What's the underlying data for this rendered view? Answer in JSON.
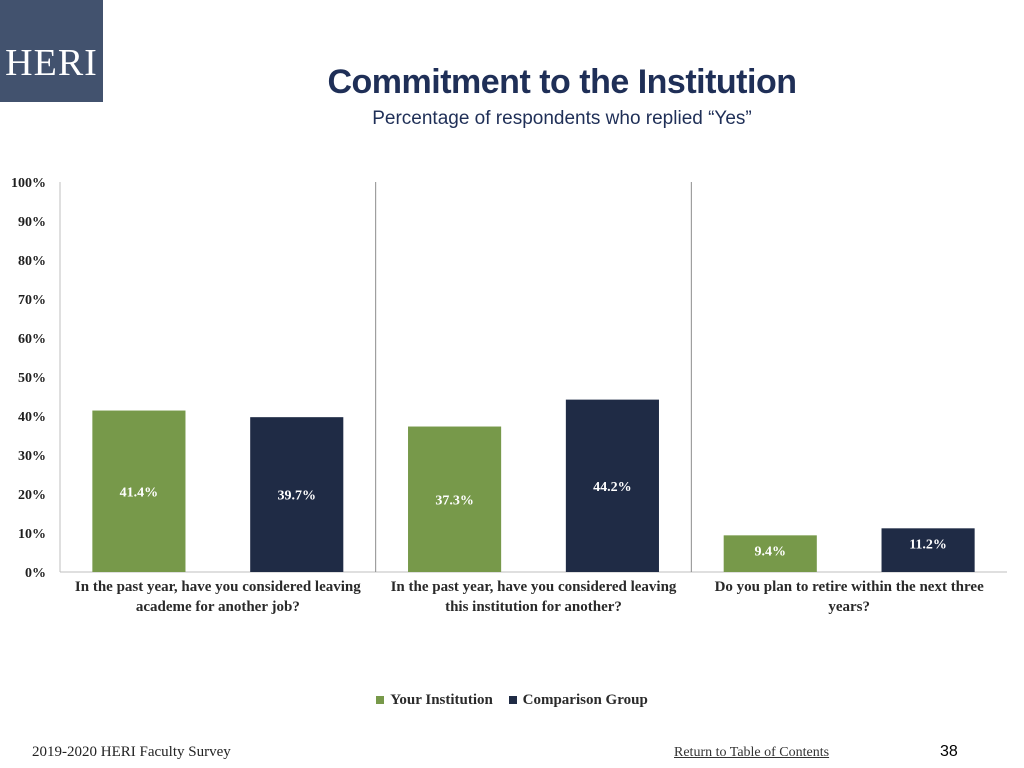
{
  "logo": {
    "text": "HERI"
  },
  "header": {
    "title": "Commitment to the Institution",
    "subtitle": "Percentage of respondents who replied “Yes”"
  },
  "colors": {
    "your_institution": "#77994a",
    "comparison_group": "#1f2b45",
    "header_bg": "#42526e",
    "title": "#1f2f57"
  },
  "chart_data": {
    "type": "bar",
    "title": "Commitment to the Institution",
    "subtitle": "Percentage of respondents who replied “Yes”",
    "categories": [
      "In the past year, have you considered leaving academe for another job?",
      "In the past year, have you considered leaving this institution for another?",
      "Do you plan to retire within the next three years?"
    ],
    "series": [
      {
        "name": "Your Institution",
        "values": [
          41.4,
          37.3,
          9.4
        ],
        "labels": [
          "41.4%",
          "37.3%",
          "9.4%"
        ]
      },
      {
        "name": "Comparison Group",
        "values": [
          39.7,
          44.2,
          11.2
        ],
        "labels": [
          "39.7%",
          "44.2%",
          "11.2%"
        ]
      }
    ],
    "ylim": [
      0,
      100
    ],
    "yticks": [
      "0%",
      "10%",
      "20%",
      "30%",
      "40%",
      "50%",
      "60%",
      "70%",
      "80%",
      "90%",
      "100%"
    ],
    "grid": false,
    "legend_position": "bottom"
  },
  "legend": {
    "items": [
      "Your Institution",
      "Comparison Group"
    ]
  },
  "footer": {
    "survey": "2019-2020 HERI Faculty Survey",
    "link": "Return to Table of Contents",
    "page": "38"
  }
}
